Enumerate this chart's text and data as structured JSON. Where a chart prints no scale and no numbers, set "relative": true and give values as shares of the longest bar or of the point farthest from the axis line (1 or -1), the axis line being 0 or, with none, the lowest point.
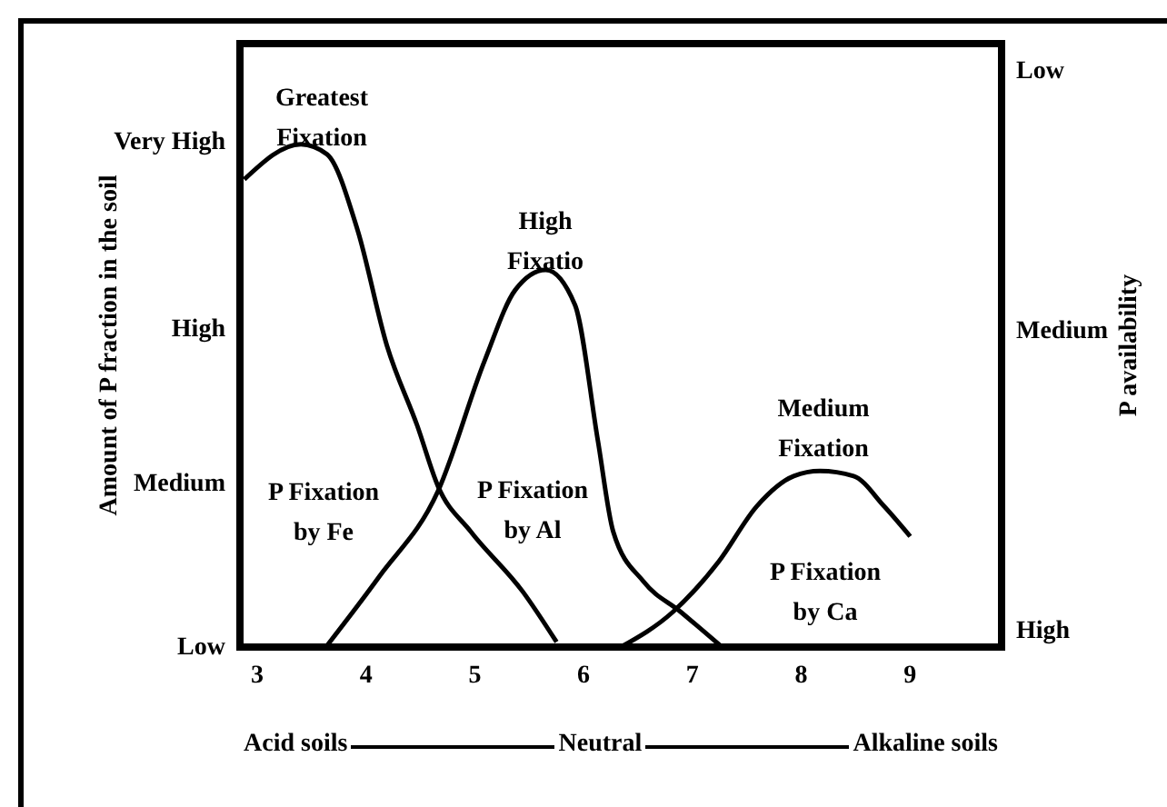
{
  "chart_data": {
    "type": "line",
    "relative": true,
    "ylabel": "Amount of P fraction in the soil",
    "y2label": "P availability",
    "xlim": [
      2.85,
      9.85
    ],
    "xticks": [
      3,
      4,
      5,
      6,
      7,
      8,
      9
    ],
    "grid": false,
    "legend": false,
    "marker": "none",
    "line_style": "solid",
    "series": [
      {
        "color": "#000000",
        "x": [
          2.89,
          3.41,
          3.65,
          3.93,
          4.2,
          4.48,
          4.67,
          4.97,
          5.45,
          5.76
        ],
        "values": [
          0.93,
          1,
          0.98,
          0.83,
          0.6,
          0.44,
          0.32,
          0.23,
          0.11,
          0.01
        ]
      },
      {
        "color": "#000000",
        "x": [
          3.64,
          4.13,
          4.67,
          5.1,
          5.38,
          5.66,
          5.93,
          6.14,
          6.28,
          6.56,
          6.9,
          7.28
        ],
        "values": [
          0,
          0.14,
          0.31,
          0.57,
          0.71,
          0.75,
          0.68,
          0.41,
          0.23,
          0.13,
          0.07,
          0
        ]
      },
      {
        "color": "#000000",
        "x": [
          6.35,
          6.83,
          7.25,
          7.6,
          7.94,
          8.18,
          8.49,
          8.77,
          9.01
        ],
        "values": [
          0,
          0.07,
          0.17,
          0.28,
          0.34,
          0.35,
          0.34,
          0.28,
          0.22
        ]
      }
    ],
    "annotations": [
      "Very High",
      "High",
      "Medium",
      "Low",
      "Low",
      "Medium",
      "High",
      "Acid soils",
      "Neutral",
      "Alkaline soils",
      "Greatest\nFixation",
      "High\nFixatio",
      "Medium\nFixation",
      "P Fixation\nby Fe",
      "P Fixation\nby Al",
      "P Fixation\nby Ca"
    ]
  }
}
